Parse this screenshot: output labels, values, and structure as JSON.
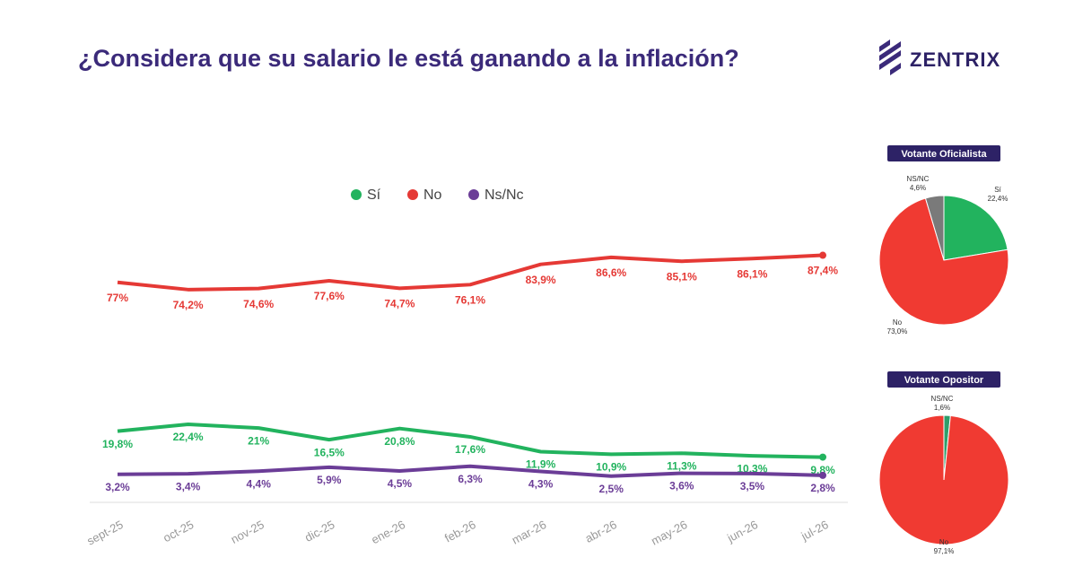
{
  "logo": "ZENTRIX",
  "chart_data": [
    {
      "type": "line",
      "title": "¿Considera que su salario le está ganando a la inflación?",
      "categories": [
        "sept-25",
        "oct-25",
        "nov-25",
        "dic-25",
        "ene-26",
        "feb-26",
        "mar-26",
        "abr-26",
        "may-26",
        "jun-26",
        "jul-26"
      ],
      "ylim": [
        0,
        100
      ],
      "legend": "top",
      "series": [
        {
          "name": "Sí",
          "color": "#22b35e",
          "values": [
            19.8,
            22.4,
            21,
            16.5,
            20.8,
            17.6,
            11.9,
            10.9,
            11.3,
            10.3,
            9.8
          ],
          "value_labels": [
            "19,8%",
            "22,4%",
            "21%",
            "16,5%",
            "20,8%",
            "17,6%",
            "11,9%",
            "10,9%",
            "11,3%",
            "10,3%",
            "9,8%"
          ]
        },
        {
          "name": "No",
          "color": "#e53935",
          "values": [
            77,
            74.2,
            74.6,
            77.6,
            74.7,
            76.1,
            83.9,
            86.6,
            85.1,
            86.1,
            87.4
          ],
          "value_labels": [
            "77%",
            "74,2%",
            "74,6%",
            "77,6%",
            "74,7%",
            "76,1%",
            "83,9%",
            "86,6%",
            "85,1%",
            "86,1%",
            "87,4%"
          ]
        },
        {
          "name": "Ns/Nc",
          "color": "#6b3d97",
          "values": [
            3.2,
            3.4,
            4.4,
            5.9,
            4.5,
            6.3,
            4.3,
            2.5,
            3.6,
            3.5,
            2.8
          ],
          "value_labels": [
            "3,2%",
            "3,4%",
            "4,4%",
            "5,9%",
            "4,5%",
            "6,3%",
            "4,3%",
            "2,5%",
            "3,6%",
            "3,5%",
            "2,8%"
          ]
        }
      ]
    },
    {
      "type": "pie",
      "title": "Votante Oficialista",
      "categories": [
        "Sí",
        "No",
        "NS/NC"
      ],
      "values": [
        22.4,
        73.0,
        4.6
      ],
      "value_labels": [
        "22,4%",
        "73,0%",
        "4,6%"
      ],
      "colors": [
        "#22b35e",
        "#f03a32",
        "#7a7a7a"
      ]
    },
    {
      "type": "pie",
      "title": "Votante Opositor",
      "categories": [
        "NS/NC",
        "No"
      ],
      "values": [
        1.6,
        97.1
      ],
      "value_labels": [
        "1,6%",
        "97,1%"
      ],
      "colors": [
        "#2e9e6b",
        "#f03a32"
      ]
    }
  ]
}
